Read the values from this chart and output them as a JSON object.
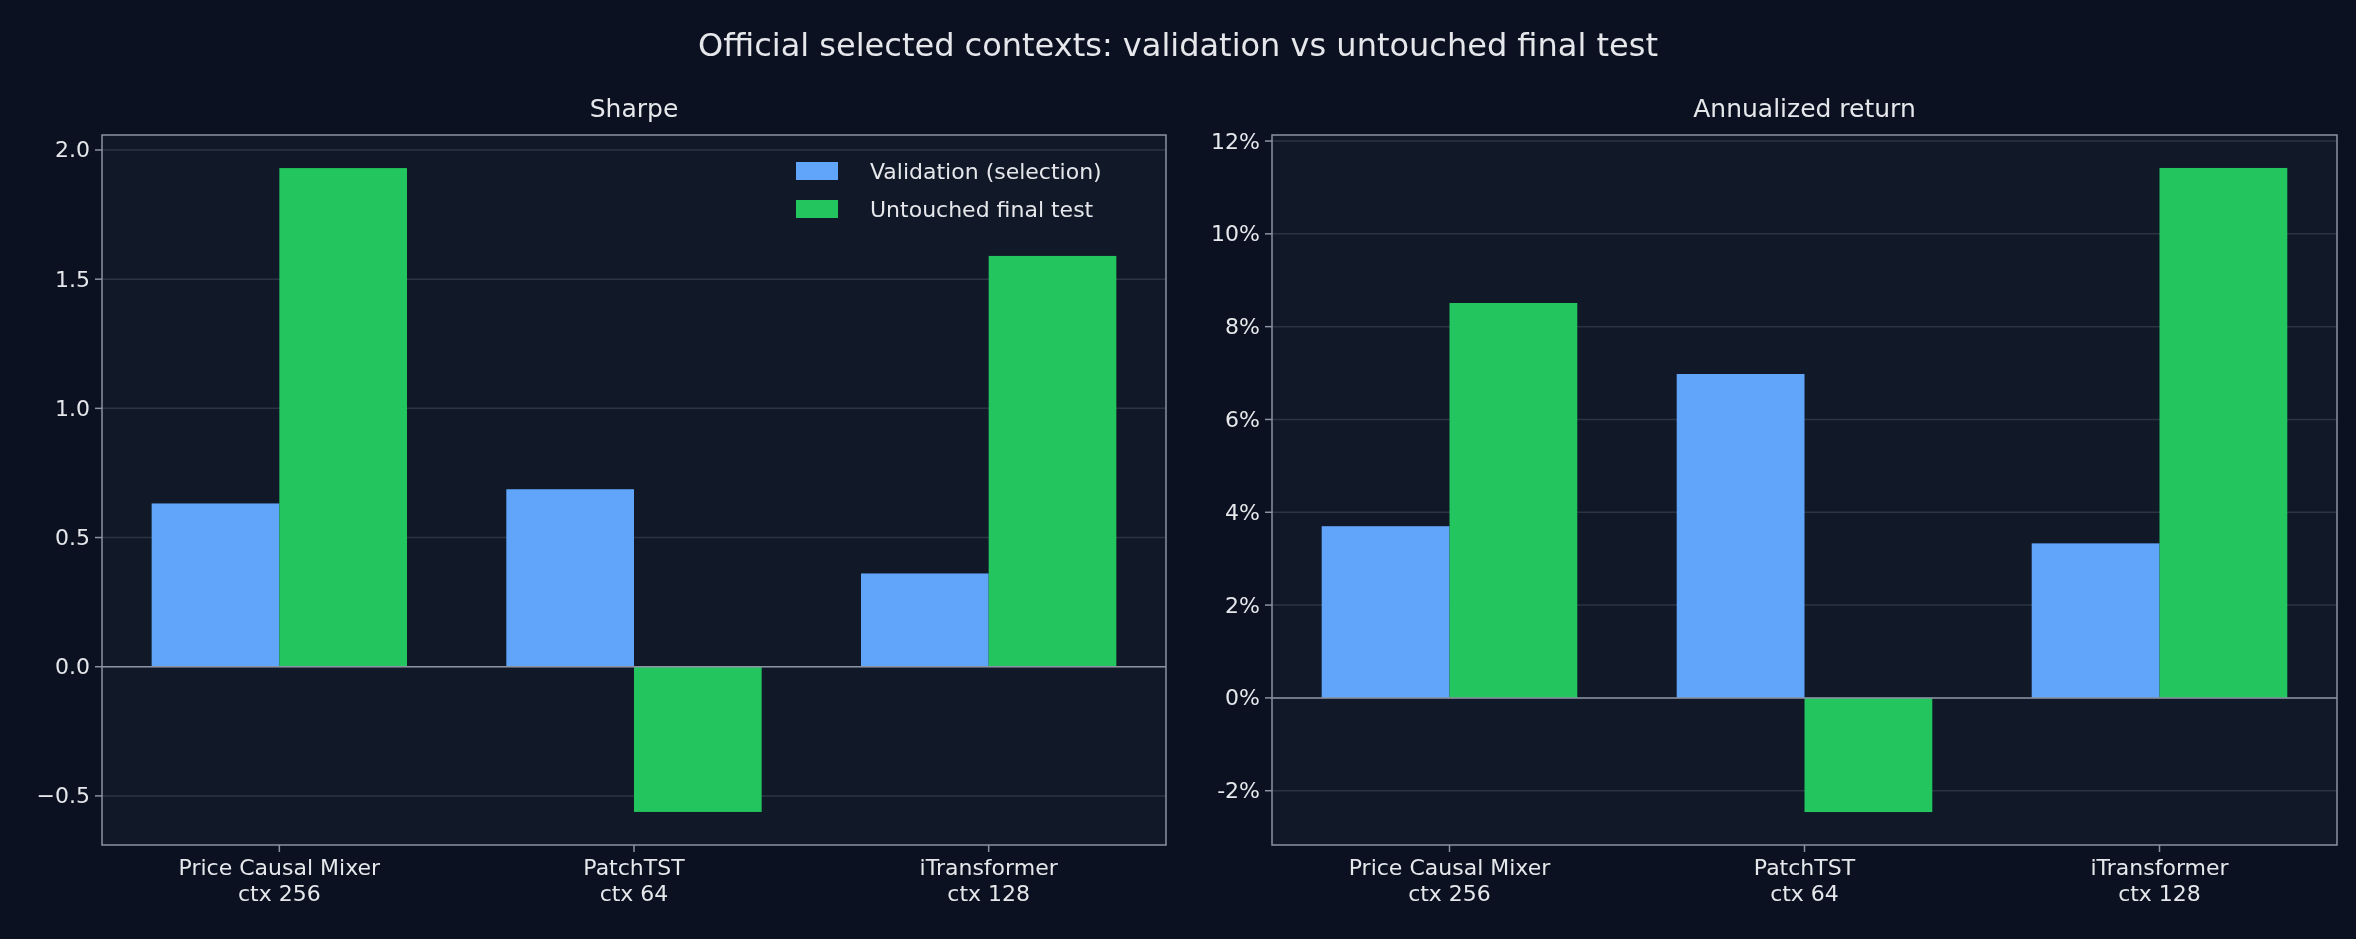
{
  "chart_data": [
    {
      "type": "bar",
      "title": "Sharpe",
      "categories": [
        "Price Causal Mixer\nctx 256",
        "PatchTST\nctx 64",
        "iTransformer\nctx 128"
      ],
      "series": [
        {
          "name": "Validation (selection)",
          "color": "#60a5fa",
          "values": [
            0.632,
            0.687,
            0.361
          ]
        },
        {
          "name": "Untouched final test",
          "color": "#22c55e",
          "values": [
            1.93,
            -0.562,
            1.59
          ]
        }
      ],
      "ylim": [
        -0.69,
        2.058
      ],
      "yticks": [
        {
          "value": -0.5,
          "label": "−0.5"
        },
        {
          "value": 0,
          "label": "0.0"
        },
        {
          "value": 0.5,
          "label": "0.5"
        },
        {
          "value": 1,
          "label": "1.0"
        },
        {
          "value": 1.5,
          "label": "1.5"
        },
        {
          "value": 2,
          "label": "2.0"
        }
      ],
      "grid": "y",
      "legend": "top right",
      "annotations": [
        "Official selected contexts: validation vs untouched final test"
      ]
    },
    {
      "type": "bar",
      "title": "Annualized return",
      "categories": [
        "Price Causal Mixer\nctx 256",
        "PatchTST\nctx 64",
        "iTransformer\nctx 128"
      ],
      "series": [
        {
          "color": "#60a5fa",
          "values": [
            3.7,
            6.98,
            3.33
          ]
        },
        {
          "color": "#22c55e",
          "values": [
            8.51,
            -2.46,
            11.42
          ]
        }
      ],
      "ylim": [
        -3.17,
        12.13
      ],
      "yticks": [
        {
          "value": -2,
          "label": "-2%"
        },
        {
          "value": 0,
          "label": "0%"
        },
        {
          "value": 2,
          "label": "2%"
        },
        {
          "value": 4,
          "label": "4%"
        },
        {
          "value": 6,
          "label": "6%"
        },
        {
          "value": 8,
          "label": "8%"
        },
        {
          "value": 10,
          "label": "10%"
        },
        {
          "value": 12,
          "label": "12%"
        }
      ],
      "grid": "y",
      "legend": false
    }
  ]
}
